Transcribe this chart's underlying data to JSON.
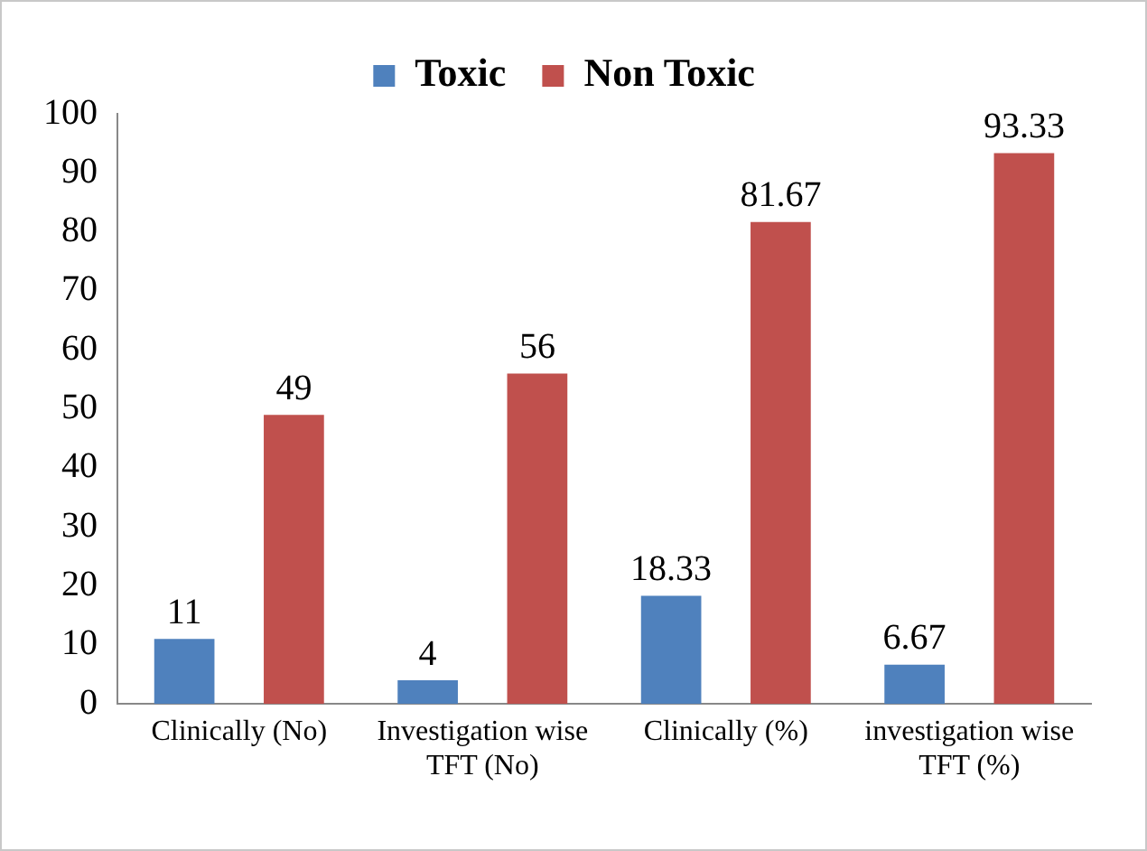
{
  "chart_data": {
    "type": "bar",
    "categories": [
      "Clinically (No)",
      "Investigation wise TFT (No)",
      "Clinically (%)",
      "investigation wise TFT (%)"
    ],
    "series": [
      {
        "name": "Toxic",
        "color": "#4f81bd",
        "values": [
          11,
          4,
          18.33,
          6.67
        ]
      },
      {
        "name": "Non Toxic",
        "color": "#c0504d",
        "values": [
          49,
          56,
          81.67,
          93.33
        ]
      }
    ],
    "ylim": [
      0,
      100
    ],
    "yticks": [
      0,
      10,
      20,
      30,
      40,
      50,
      60,
      70,
      80,
      90,
      100
    ],
    "grid": false,
    "legend": "top",
    "data_labels": true
  }
}
